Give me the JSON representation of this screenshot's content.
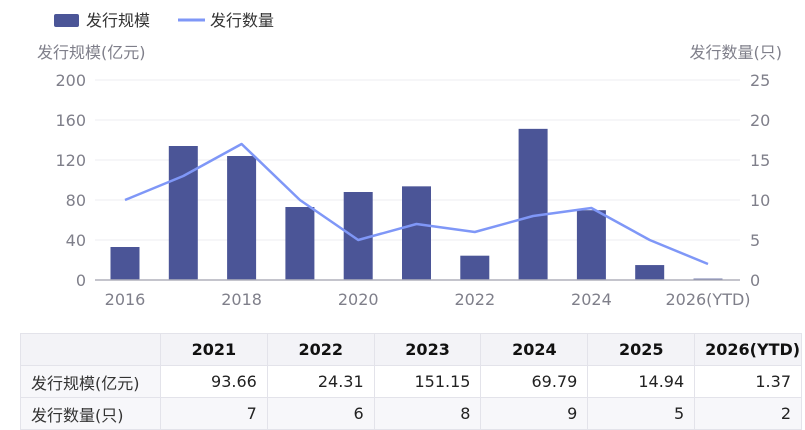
{
  "legend": {
    "bar_label": "发行规模",
    "line_label": "发行数量"
  },
  "colors": {
    "bar": "#4b5597",
    "line": "#7f97f7",
    "grid": "#ececf2",
    "axis": "#b0b0bc"
  },
  "chart_data": {
    "type": "bar",
    "x": [
      2016,
      2017,
      2018,
      2019,
      2020,
      2021,
      2022,
      2023,
      2024,
      2025,
      2026
    ],
    "x_tick_labels": [
      "2016",
      "2018",
      "2020",
      "2022",
      "2024",
      "2026(YTD)"
    ],
    "series": [
      {
        "name": "发行规模",
        "type": "bar",
        "axis": "left",
        "values": [
          33,
          134,
          124,
          73,
          88,
          93.66,
          24.31,
          151.15,
          69.79,
          14.94,
          1.37
        ]
      },
      {
        "name": "发行数量",
        "type": "line",
        "axis": "right",
        "values": [
          10,
          13,
          17,
          10,
          5,
          7,
          6,
          8,
          9,
          5,
          2
        ]
      }
    ],
    "ylabel": "发行规模(亿元)",
    "ylabel_right": "发行数量(只)",
    "ylim": [
      0,
      200
    ],
    "yticks": [
      0,
      40,
      80,
      120,
      160,
      200
    ],
    "ylim_right": [
      0,
      25
    ],
    "yticks_right": [
      0,
      5,
      10,
      15,
      20,
      25
    ],
    "grid": true,
    "legend_position": "top-left"
  },
  "table": {
    "headers": [
      "",
      "2021",
      "2022",
      "2023",
      "2024",
      "2025",
      "2026(YTD)"
    ],
    "rows": [
      {
        "label": "发行规模(亿元)",
        "values": [
          "93.66",
          "24.31",
          "151.15",
          "69.79",
          "14.94",
          "1.37"
        ]
      },
      {
        "label": "发行数量(只)",
        "values": [
          "7",
          "6",
          "8",
          "9",
          "5",
          "2"
        ]
      }
    ]
  }
}
